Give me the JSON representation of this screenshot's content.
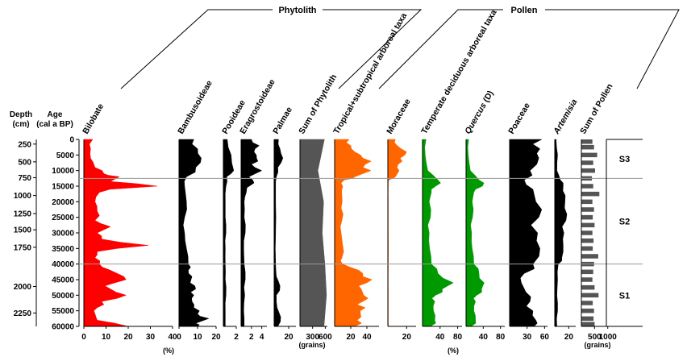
{
  "chart_data": {
    "type": "area",
    "title": "",
    "groups": [
      {
        "label": "Phytolith",
        "panels": [
          "Bilobate",
          "Bambusoideae",
          "Pooideae",
          "Eragrostoideae",
          "Palmae",
          "Sum of Phytolith"
        ]
      },
      {
        "label": "Pollen",
        "panels": [
          "Tropical+subtropical arboreal taxa",
          "Moraceae",
          "Temperate deciduous arboreal taxa",
          "Quercus (D)",
          "Poaceae",
          "Artemisia",
          "Sum of Pollen"
        ]
      }
    ],
    "depth_axis": {
      "label_line1": "Depth",
      "label_line2": "(cm)",
      "ticks": [
        "250",
        "500",
        "750",
        "1000",
        "1250",
        "1500",
        "1750",
        "2000",
        "2250"
      ]
    },
    "age_axis": {
      "label_line1": "Age",
      "label_line2": "(cal a BP)",
      "range": [
        0,
        60000
      ],
      "ticks": [
        "0",
        "5000",
        "10000",
        "15000",
        "20000",
        "25000",
        "30000",
        "35000",
        "40000",
        "45000",
        "50000",
        "55000",
        "60000"
      ]
    },
    "depth_tick_ages": [
      1500,
      7200,
      12300,
      18000,
      23800,
      29000,
      34600,
      47200,
      55700
    ],
    "unit_percent": "(%)",
    "unit_grains": "(grains)",
    "zones": [
      {
        "label": "S3",
        "from": 0,
        "to": 12500
      },
      {
        "label": "S2",
        "from": 12500,
        "to": 40000
      },
      {
        "label": "S1",
        "from": 40000,
        "to": 60000
      }
    ],
    "boundaries": [
      12500,
      40000
    ],
    "series": [
      {
        "name": "Bilobate",
        "color": "#ff0000",
        "style": "area",
        "xmax": 40,
        "ticks": [
          "0",
          "10",
          "20",
          "30",
          "40"
        ],
        "tickvals": [
          0,
          10,
          20,
          30,
          40
        ],
        "ages": [
          0,
          3000,
          6000,
          9000,
          11000,
          12000,
          13500,
          15000,
          17000,
          20000,
          23000,
          26000,
          28000,
          30000,
          32000,
          34000,
          36000,
          38000,
          40000,
          42000,
          44000,
          46000,
          48000,
          50000,
          52000,
          54000,
          56000,
          58000,
          60000
        ],
        "values": [
          4,
          3,
          3,
          5,
          9,
          16,
          12,
          33,
          7,
          5,
          6,
          5,
          12,
          6,
          8,
          29,
          6,
          5,
          7,
          12,
          18,
          14,
          12,
          19,
          8,
          6,
          5,
          6,
          20
        ]
      },
      {
        "name": "Bambusoideae",
        "color": "#000000",
        "style": "area",
        "xmax": 20,
        "ticks": [
          "0",
          "10",
          "20"
        ],
        "tickvals": [
          0,
          10,
          20
        ],
        "ages": [
          0,
          3000,
          6000,
          9000,
          12000,
          15000,
          20000,
          25000,
          30000,
          35000,
          40000,
          42000,
          44000,
          46000,
          48000,
          50000,
          52000,
          54000,
          56000,
          57500,
          59000,
          60000
        ],
        "values": [
          8,
          10,
          12,
          9,
          4,
          3,
          4,
          3,
          3,
          4,
          5,
          5,
          7,
          6,
          9,
          8,
          7,
          8,
          10,
          16,
          9,
          10
        ]
      },
      {
        "name": "Pooideae",
        "color": "#000000",
        "style": "area",
        "xmax": 2,
        "ticks": [
          "2"
        ],
        "tickvals": [
          2
        ],
        "ages": [
          0,
          5000,
          10000,
          12000,
          15000,
          20000,
          25000,
          30000,
          35000,
          40000,
          45000,
          50000,
          55000,
          60000
        ],
        "values": [
          0.6,
          1.2,
          1.6,
          0.5,
          0.4,
          0.3,
          0.3,
          0.4,
          0.3,
          0.3,
          0.3,
          0.4,
          0.3,
          0.3
        ]
      },
      {
        "name": "Eragrostoideae",
        "color": "#000000",
        "style": "area",
        "xmax": 5,
        "ticks": [
          "2",
          "4"
        ],
        "tickvals": [
          2,
          4
        ],
        "ages": [
          0,
          2000,
          4000,
          6000,
          8000,
          10000,
          12000,
          14000,
          17000,
          20000,
          25000,
          30000,
          35000,
          40000,
          45000,
          50000,
          55000,
          60000
        ],
        "values": [
          2,
          3.5,
          2.5,
          3,
          2,
          4,
          1.5,
          2.5,
          1,
          0.6,
          0.6,
          0.8,
          0.5,
          0.6,
          0.8,
          0.7,
          0.5,
          0.6
        ]
      },
      {
        "name": "Palmae",
        "color": "#000000",
        "style": "area",
        "xmax": 30,
        "ticks": [
          "20"
        ],
        "tickvals": [
          20
        ],
        "ages": [
          0,
          3000,
          6000,
          9000,
          12000,
          15000,
          20000,
          30000,
          40000,
          44000,
          47000,
          50000,
          54000,
          57000,
          60000
        ],
        "values": [
          6,
          8,
          12,
          5,
          3,
          2,
          2,
          2,
          2,
          3,
          8,
          3,
          4,
          9,
          5
        ]
      },
      {
        "name": "Sum of Phytolith",
        "color": "#555555",
        "style": "area",
        "xmax": 650,
        "ticks": [
          "300",
          "600"
        ],
        "tickvals": [
          300,
          600
        ],
        "ages": [
          0,
          20000,
          40000,
          60000
        ],
        "values": [
          580,
          560,
          590,
          570
        ]
      },
      {
        "name": "Tropical+subtropical arboreal taxa",
        "color": "#ff6600",
        "style": "area",
        "xmax": 55,
        "ticks": [
          "20",
          "40"
        ],
        "tickvals": [
          20,
          40
        ],
        "ages": [
          0,
          2000,
          4000,
          6000,
          8000,
          10000,
          12000,
          13000,
          15000,
          18000,
          22000,
          26000,
          30000,
          34000,
          38000,
          40000,
          42000,
          44000,
          46000,
          48000,
          50000,
          52000,
          54000,
          56000,
          58000,
          60000
        ],
        "values": [
          18,
          20,
          25,
          35,
          38,
          45,
          25,
          12,
          10,
          9,
          8,
          9,
          8,
          10,
          9,
          10,
          30,
          35,
          40,
          33,
          36,
          35,
          38,
          32,
          28,
          25
        ]
      },
      {
        "name": "Moraceae",
        "color": "#ff6600",
        "style": "area",
        "xmax": 30,
        "ticks": [
          "20"
        ],
        "tickvals": [
          20
        ],
        "ages": [
          0,
          2000,
          4000,
          6000,
          8000,
          10000,
          12000,
          13000,
          15000,
          20000,
          30000,
          40000,
          50000,
          60000
        ],
        "values": [
          8,
          10,
          20,
          13,
          11,
          12,
          8,
          1,
          0.5,
          0.5,
          0.5,
          0.5,
          0.5,
          0.5
        ]
      },
      {
        "name": "Temperate deciduous arboreal taxa",
        "color": "#009900",
        "style": "area",
        "xmax": 90,
        "ticks": [
          "40",
          "80"
        ],
        "tickvals": [
          40,
          80
        ],
        "ages": [
          0,
          5000,
          10000,
          13000,
          15000,
          17000,
          20000,
          25000,
          30000,
          35000,
          40000,
          43000,
          46000,
          48000,
          50000,
          52000,
          55000,
          58000,
          60000
        ],
        "values": [
          8,
          6,
          12,
          35,
          30,
          20,
          15,
          18,
          15,
          16,
          20,
          35,
          70,
          45,
          30,
          28,
          25,
          28,
          18
        ]
      },
      {
        "name": "Quercus (D)",
        "color": "#009900",
        "style": "area",
        "xmax": 90,
        "ticks": [
          "40",
          "80"
        ],
        "tickvals": [
          40,
          80
        ],
        "ages": [
          0,
          5000,
          10000,
          13000,
          15000,
          17000,
          20000,
          25000,
          30000,
          35000,
          40000,
          43000,
          46000,
          48000,
          50000,
          52000,
          55000,
          58000,
          60000
        ],
        "values": [
          6,
          5,
          10,
          30,
          38,
          18,
          14,
          15,
          13,
          14,
          18,
          30,
          42,
          36,
          25,
          22,
          18,
          22,
          12
        ]
      },
      {
        "name": "Poaceae",
        "color": "#000000",
        "style": "area",
        "xmax": 65,
        "ticks": [
          "30",
          "60"
        ],
        "tickvals": [
          30,
          60
        ],
        "ages": [
          0,
          3000,
          6000,
          10000,
          13000,
          16000,
          20000,
          25000,
          30000,
          35000,
          40000,
          43000,
          46000,
          49000,
          52000,
          55000,
          58000,
          60000
        ],
        "values": [
          55,
          52,
          50,
          35,
          25,
          40,
          45,
          50,
          48,
          52,
          40,
          25,
          20,
          28,
          35,
          40,
          45,
          42
        ]
      },
      {
        "name": "Artemisia",
        "color": "#000000",
        "style": "area",
        "xmax": 30,
        "ticks": [
          "20"
        ],
        "tickvals": [
          20
        ],
        "ages": [
          0,
          5000,
          10000,
          13000,
          15000,
          18000,
          22000,
          26000,
          30000,
          34000,
          38000,
          40000,
          45000,
          50000,
          55000,
          60000
        ],
        "values": [
          2,
          4,
          3,
          8,
          12,
          15,
          14,
          16,
          13,
          12,
          10,
          5,
          4,
          3,
          4,
          3
        ]
      },
      {
        "name": "Sum of Pollen",
        "color": "#555555",
        "style": "bars",
        "xmax": 1100,
        "ticks": [
          "500",
          "1000"
        ],
        "tickvals": [
          500,
          1000
        ],
        "ages": [
          0,
          2500,
          5000,
          7500,
          10000,
          12500,
          15000,
          17500,
          20000,
          22500,
          25000,
          27500,
          30000,
          32500,
          35000,
          37500,
          40000,
          42500,
          45000,
          47500,
          50000,
          52500,
          55000,
          57500,
          60000
        ],
        "values": [
          420,
          480,
          600,
          450,
          520,
          400,
          450,
          680,
          420,
          480,
          430,
          500,
          420,
          460,
          430,
          640,
          480,
          450,
          420,
          500,
          650,
          430,
          480,
          460,
          500
        ]
      }
    ]
  }
}
